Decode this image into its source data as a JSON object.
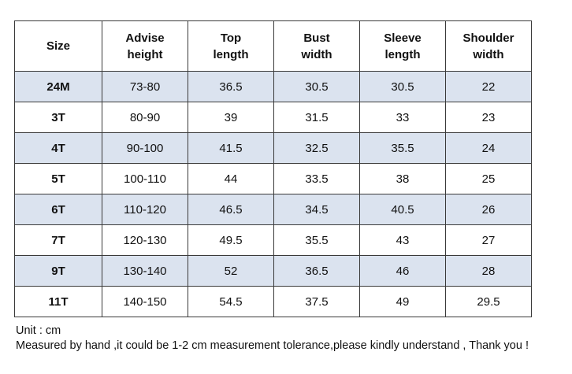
{
  "table": {
    "headers": [
      "Size",
      "Advise\nheight",
      "Top\nlength",
      "Bust\nwidth",
      "Sleeve\nlength",
      "Shoulder\nwidth"
    ],
    "rows": [
      [
        "24M",
        "73-80",
        "36.5",
        "30.5",
        "30.5",
        "22"
      ],
      [
        "3T",
        "80-90",
        "39",
        "31.5",
        "33",
        "23"
      ],
      [
        "4T",
        "90-100",
        "41.5",
        "32.5",
        "35.5",
        "24"
      ],
      [
        "5T",
        "100-110",
        "44",
        "33.5",
        "38",
        "25"
      ],
      [
        "6T",
        "110-120",
        "46.5",
        "34.5",
        "40.5",
        "26"
      ],
      [
        "7T",
        "120-130",
        "49.5",
        "35.5",
        "43",
        "27"
      ],
      [
        "9T",
        "130-140",
        "52",
        "36.5",
        "46",
        "28"
      ],
      [
        "11T",
        "140-150",
        "54.5",
        "37.5",
        "49",
        "29.5"
      ]
    ],
    "shade_color": "#dbe3ef"
  },
  "notes": {
    "unit": "Unit : cm",
    "measurement": "Measured by hand ,it could be 1-2 cm measurement tolerance,please kindly understand , Thank you !"
  }
}
